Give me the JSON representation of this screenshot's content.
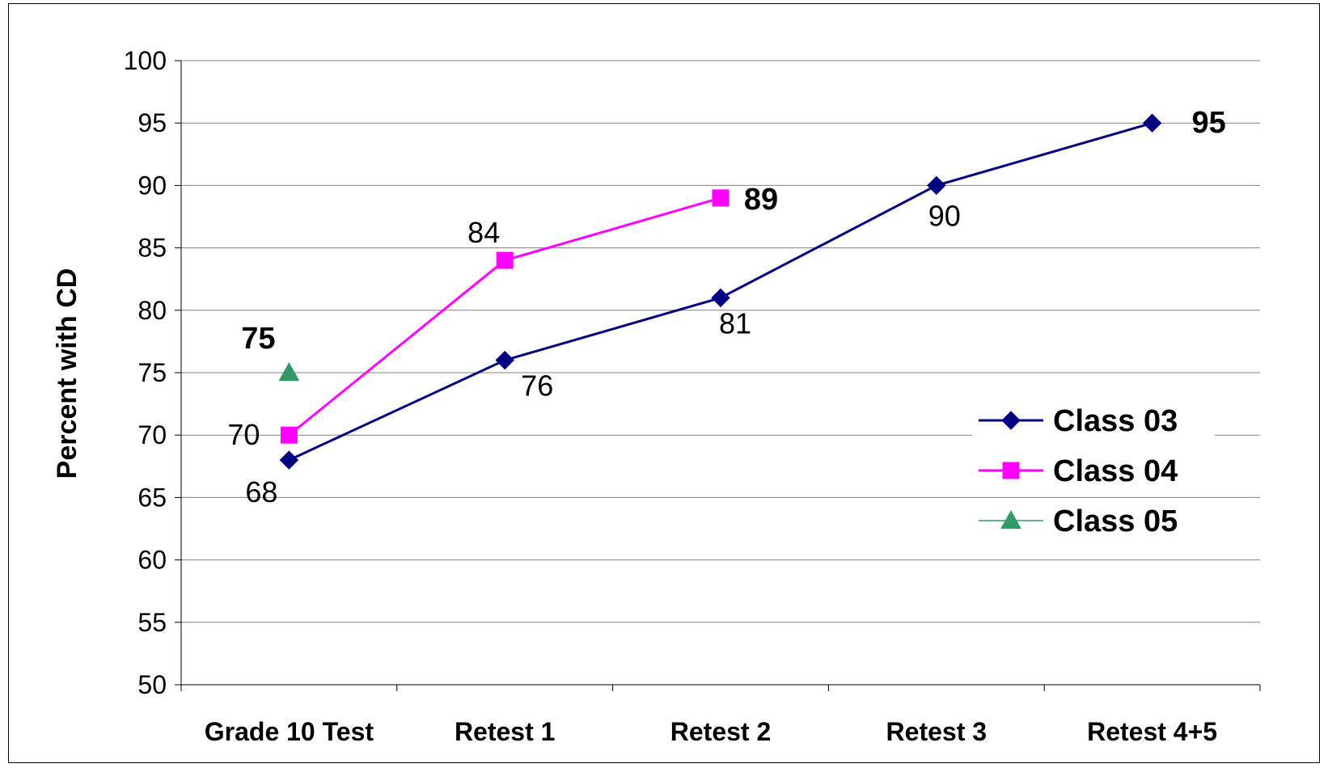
{
  "chart_data": {
    "type": "line",
    "title": "",
    "xlabel": "",
    "ylabel": "Percent with CD",
    "ylim": [
      50,
      100
    ],
    "ytick_step": 5,
    "grid": "horizontal",
    "legend_position": "right",
    "categories": [
      "Grade 10 Test",
      "Retest 1",
      "Retest 2",
      "Retest 3",
      "Retest 4+5"
    ],
    "series": [
      {
        "name": "Class 03",
        "color": "#000080",
        "marker": "diamond",
        "values": [
          68,
          76,
          81,
          90,
          95
        ],
        "bold_labels": [
          false,
          false,
          false,
          false,
          true
        ]
      },
      {
        "name": "Class 04",
        "color": "#ff00ff",
        "marker": "square",
        "values": [
          70,
          84,
          89,
          null,
          null
        ],
        "bold_labels": [
          false,
          false,
          true,
          false,
          false
        ]
      },
      {
        "name": "Class 05",
        "color": "#339966",
        "marker": "triangle",
        "values": [
          75,
          null,
          null,
          null,
          null
        ],
        "bold_labels": [
          true,
          false,
          false,
          false,
          false
        ]
      }
    ]
  }
}
